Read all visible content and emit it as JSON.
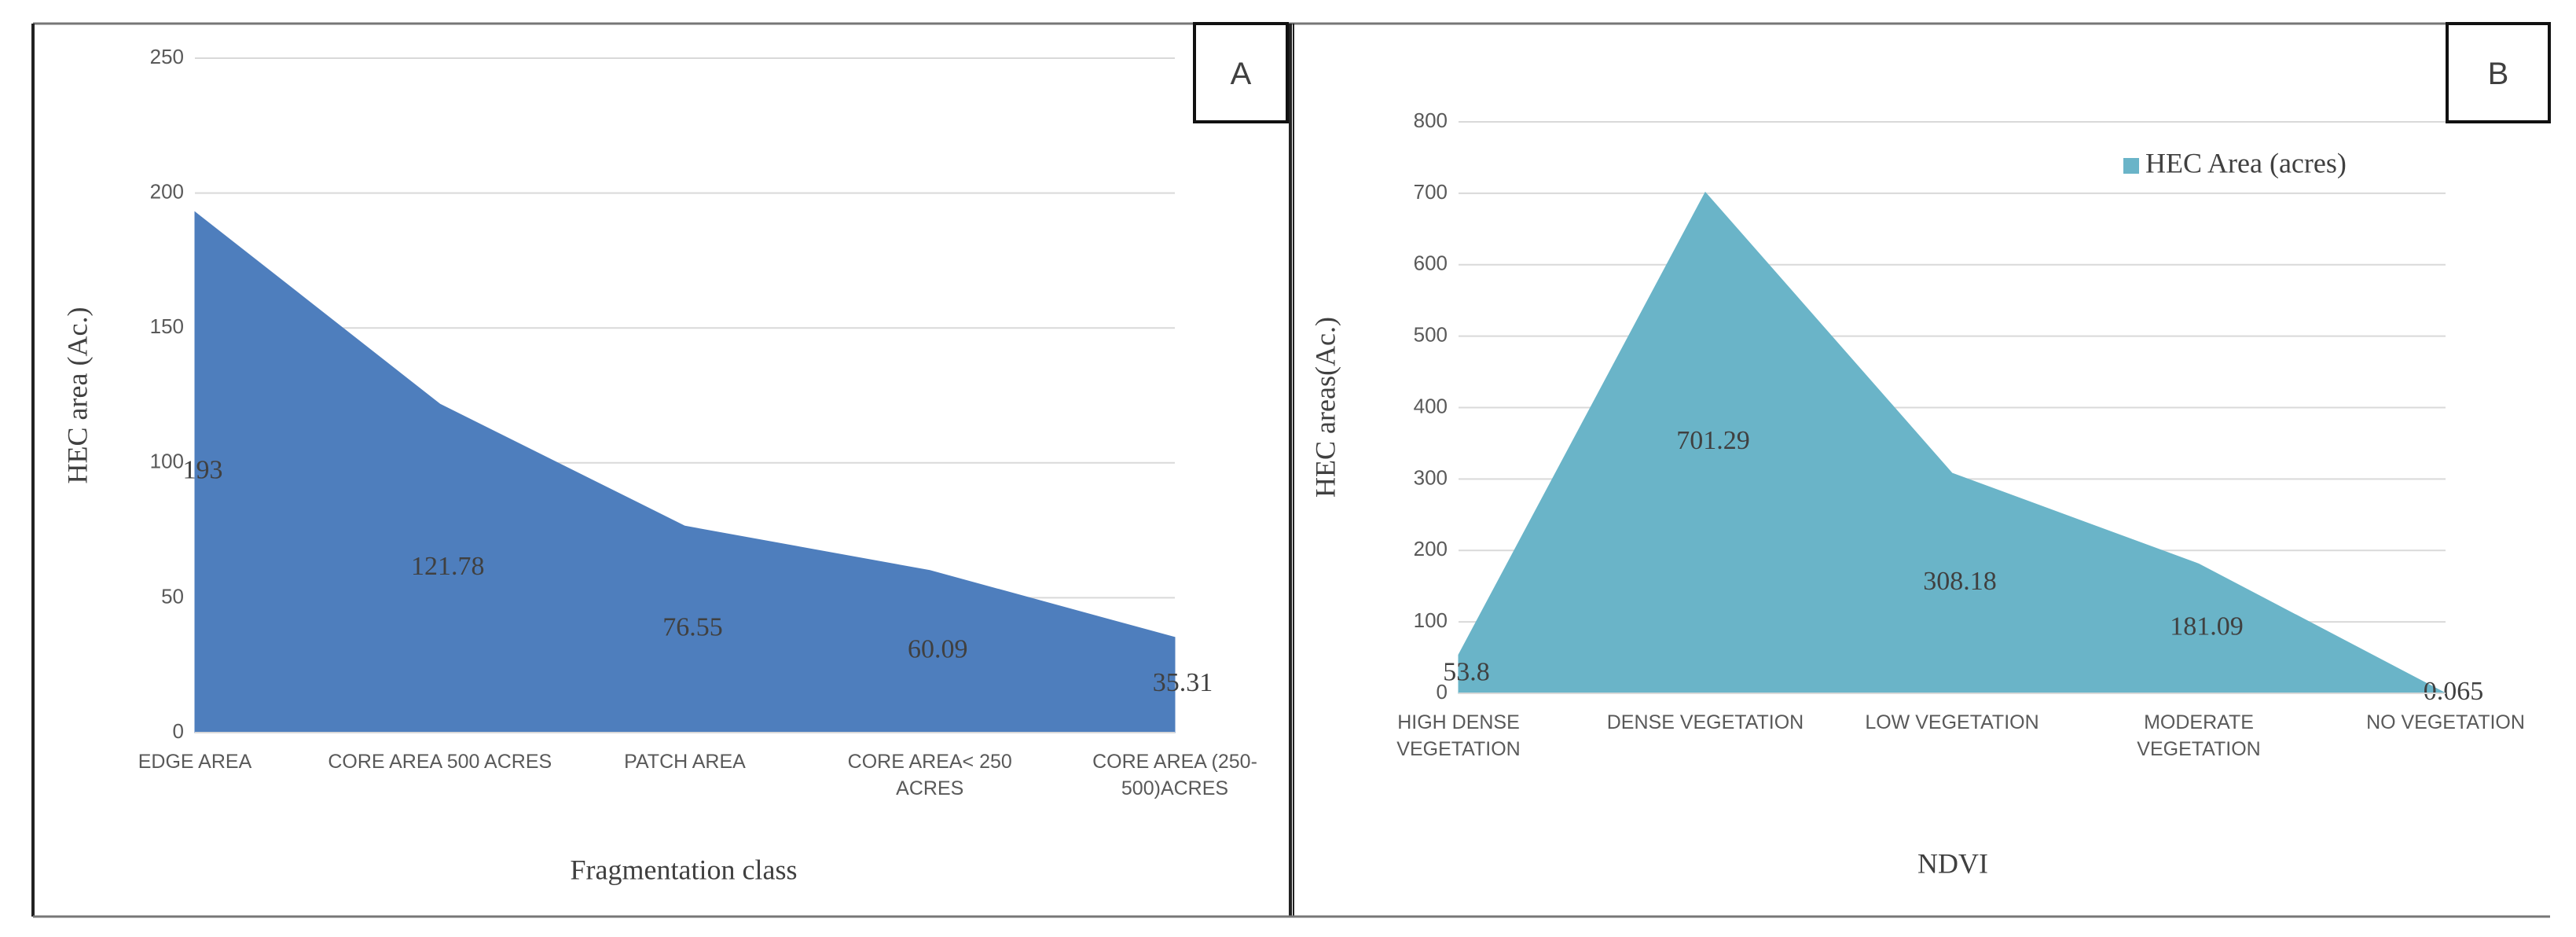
{
  "chart_data": [
    {
      "type": "area",
      "panel_label": "A",
      "x_label": "Fragmentation class",
      "y_label": "HEC area (Ac.)",
      "categories": [
        "EDGE AREA",
        "CORE AREA 500 ACRES",
        "PATCH AREA",
        "CORE AREA< 250 ACRES",
        "CORE AREA (250-500)ACRES"
      ],
      "values": [
        193,
        121.78,
        76.55,
        60.09,
        35.31
      ],
      "color": "#4e7ebd",
      "ylim": [
        0,
        250
      ],
      "yticks": [
        0,
        50,
        100,
        150,
        200,
        250
      ],
      "grid": true
    },
    {
      "type": "area",
      "panel_label": "B",
      "x_label": "NDVI",
      "y_label": "HEC areas(Ac.)",
      "categories": [
        "HIGH DENSE VEGETATION",
        "DENSE VEGETATION",
        "LOW VEGETATION",
        "MODERATE VEGETATION",
        "NO VEGETATION"
      ],
      "series": [
        {
          "name": "HEC Area (acres)",
          "color": "#6ab4c8",
          "values": [
            53.8,
            701.29,
            308.18,
            181.09,
            0.065
          ]
        }
      ],
      "legend": "top-right",
      "ylim": [
        0,
        800
      ],
      "yticks": [
        0,
        100,
        200,
        300,
        400,
        500,
        600,
        700,
        800
      ],
      "grid": true
    }
  ]
}
